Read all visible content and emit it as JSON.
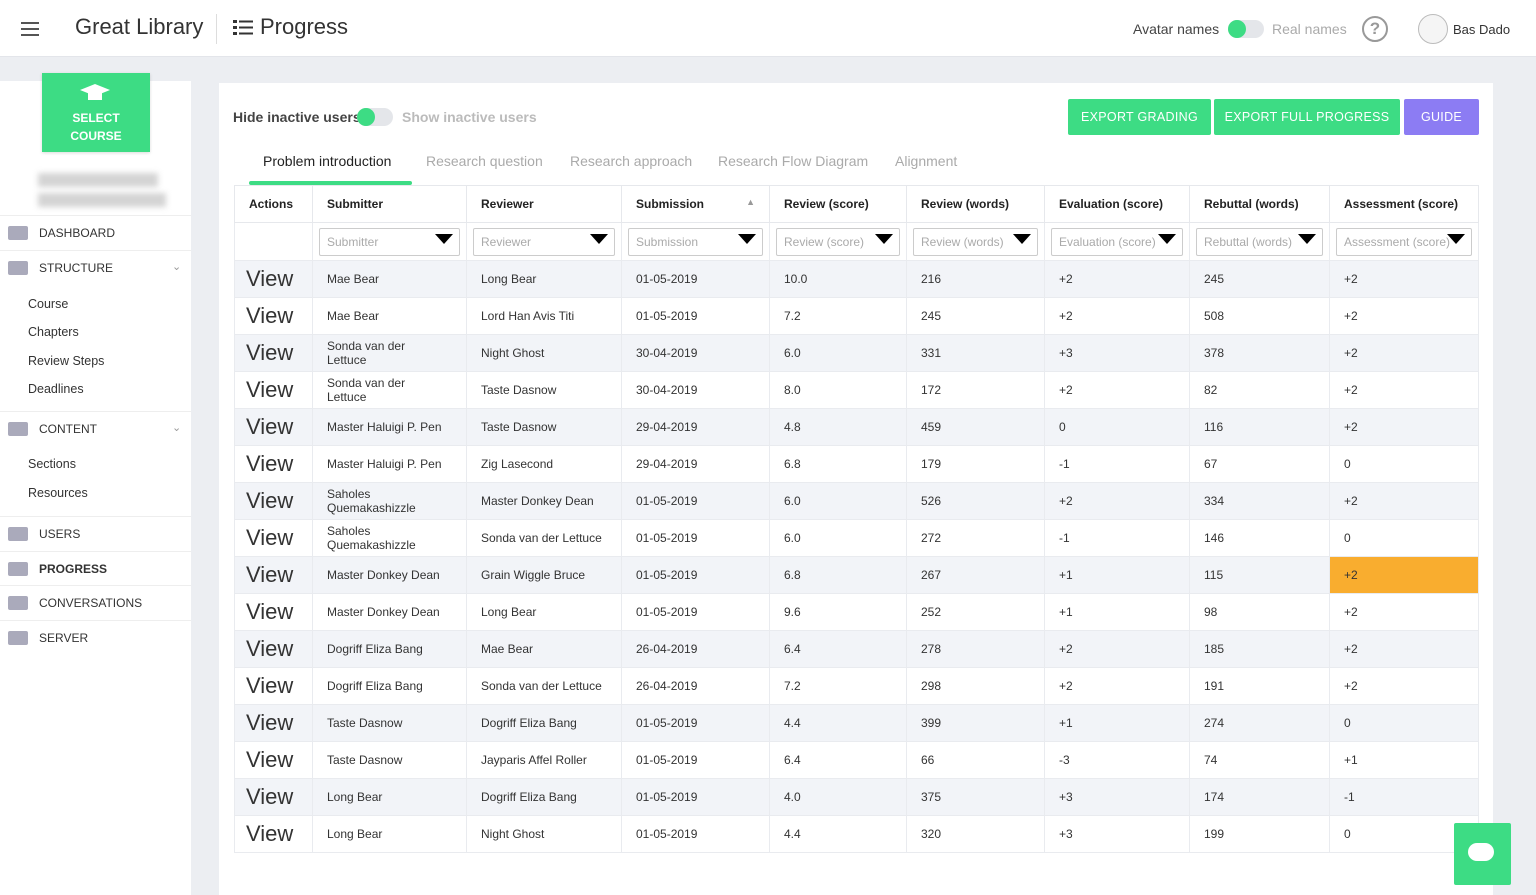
{
  "header": {
    "app_title": "Great Library",
    "page_title": "Progress",
    "avatar_names": "Avatar names",
    "real_names": "Real names",
    "help": "?",
    "user": "Bas Dado"
  },
  "sidebar": {
    "select_course": "SELECT COURSE",
    "menu": [
      {
        "label": "DASHBOARD"
      },
      {
        "label": "STRUCTURE",
        "children": [
          "Course",
          "Chapters",
          "Review Steps",
          "Deadlines"
        ]
      },
      {
        "label": "CONTENT",
        "children": [
          "Sections",
          "Resources"
        ]
      },
      {
        "label": "USERS"
      },
      {
        "label": "PROGRESS"
      },
      {
        "label": "CONVERSATIONS"
      },
      {
        "label": "SERVER"
      }
    ]
  },
  "toolbar": {
    "hide_inactive": "Hide inactive users",
    "show_inactive": "Show inactive users",
    "buttons": [
      "EXPORT GRADING",
      "EXPORT FULL PROGRESS",
      "GUIDE"
    ]
  },
  "tabs": [
    "Problem introduction",
    "Research question",
    "Research approach",
    "Research Flow Diagram",
    "Alignment"
  ],
  "table": {
    "columns": [
      "Actions",
      "Submitter",
      "Reviewer",
      "Submission",
      "Review (score)",
      "Review (words)",
      "Evaluation (score)",
      "Rebuttal (words)",
      "Assessment (score)"
    ],
    "filters": [
      "Submitter",
      "Reviewer",
      "Submission",
      "Review (score)",
      "Review (words)",
      "Evaluation (score)",
      "Rebuttal (words)",
      "Assessment (score)"
    ],
    "action": "View",
    "rows": [
      [
        "Mae Bear",
        "Long Bear",
        "01-05-2019",
        "10.0",
        "216",
        "+2",
        "245",
        "+2"
      ],
      [
        "Mae Bear",
        "Lord Han Avis Titi",
        "01-05-2019",
        "7.2",
        "245",
        "+2",
        "508",
        "+2"
      ],
      [
        "Sonda van der Lettuce",
        "Night Ghost",
        "30-04-2019",
        "6.0",
        "331",
        "+3",
        "378",
        "+2"
      ],
      [
        "Sonda van der Lettuce",
        "Taste Dasnow",
        "30-04-2019",
        "8.0",
        "172",
        "+2",
        "82",
        "+2"
      ],
      [
        "Master Haluigi P. Pen",
        "Taste Dasnow",
        "29-04-2019",
        "4.8",
        "459",
        "0",
        "116",
        "+2"
      ],
      [
        "Master Haluigi P. Pen",
        "Zig Lasecond",
        "29-04-2019",
        "6.8",
        "179",
        "-1",
        "67",
        "0"
      ],
      [
        "Saholes Quemakashizzle",
        "Master Donkey Dean",
        "01-05-2019",
        "6.0",
        "526",
        "+2",
        "334",
        "+2"
      ],
      [
        "Saholes Quemakashizzle",
        "Sonda van der Lettuce",
        "01-05-2019",
        "6.0",
        "272",
        "-1",
        "146",
        "0"
      ],
      [
        "Master Donkey Dean",
        "Grain Wiggle Bruce",
        "01-05-2019",
        "6.8",
        "267",
        "+1",
        "115",
        "+2"
      ],
      [
        "Master Donkey Dean",
        "Long Bear",
        "01-05-2019",
        "9.6",
        "252",
        "+1",
        "98",
        "+2"
      ],
      [
        "Dogriff Eliza Bang",
        "Mae Bear",
        "26-04-2019",
        "6.4",
        "278",
        "+2",
        "185",
        "+2"
      ],
      [
        "Dogriff Eliza Bang",
        "Sonda van der Lettuce",
        "26-04-2019",
        "7.2",
        "298",
        "+2",
        "191",
        "+2"
      ],
      [
        "Taste Dasnow",
        "Dogriff Eliza Bang",
        "01-05-2019",
        "4.4",
        "399",
        "+1",
        "274",
        "0"
      ],
      [
        "Taste Dasnow",
        "Jayparis Affel Roller",
        "01-05-2019",
        "6.4",
        "66",
        "-3",
        "74",
        "+1"
      ],
      [
        "Long Bear",
        "Dogriff Eliza Bang",
        "01-05-2019",
        "4.0",
        "375",
        "+3",
        "174",
        "-1"
      ],
      [
        "Long Bear",
        "Night Ghost",
        "01-05-2019",
        "4.4",
        "320",
        "+3",
        "199",
        "0"
      ]
    ]
  }
}
